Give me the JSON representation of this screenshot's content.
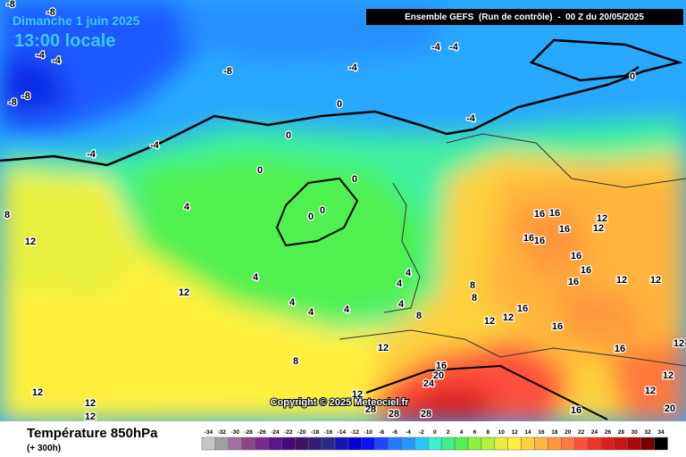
{
  "header": {
    "date": "Dimanche 1 juin 2025",
    "time": "13:00 locale",
    "model": "Ensemble GEFS  (Run de contrôle)  -  00 Z du 20/05/2025"
  },
  "copyright": "Copyright © 2025 Meteociel.fr",
  "footer": {
    "title": "Température 850hPa",
    "subtitle": "(+ 300h)"
  },
  "scale": {
    "labels": [
      -34,
      -32,
      -30,
      -28,
      -26,
      -24,
      -22,
      -20,
      -18,
      -16,
      -14,
      -12,
      -10,
      -8,
      -6,
      -4,
      -2,
      0,
      2,
      4,
      6,
      8,
      10,
      12,
      14,
      16,
      18,
      20,
      22,
      24,
      26,
      28,
      30,
      32,
      34
    ],
    "colors": [
      "#c8c8c8",
      "#a0a0a0",
      "#a070a0",
      "#8c468c",
      "#78288c",
      "#5a148c",
      "#460a78",
      "#3c1464",
      "#321e78",
      "#28288c",
      "#1414b4",
      "#0000d2",
      "#0a14f0",
      "#1e46ff",
      "#2878ff",
      "#2896ff",
      "#28c8ff",
      "#3cf0d2",
      "#3cf08c",
      "#50f050",
      "#8cf03c",
      "#b4f03c",
      "#e6f03c",
      "#fff03c",
      "#ffd23c",
      "#ffb43c",
      "#ff963c",
      "#ff783c",
      "#ff503c",
      "#f03228",
      "#dc1e1e",
      "#c81414",
      "#aa0a0a",
      "#780000",
      "#000000"
    ]
  },
  "map_labels": [
    "-8",
    "-8",
    "-4",
    "-4",
    "-8",
    "-8",
    "-8",
    "-4",
    "-4",
    "-4",
    "-4",
    "-4",
    "-4",
    "0",
    "0",
    "0",
    "0",
    "0",
    "0",
    "0",
    "4",
    "4",
    "4",
    "4",
    "4",
    "4",
    "4",
    "4",
    "8",
    "12",
    "12",
    "12",
    "12",
    "12",
    "8",
    "8",
    "16",
    "16",
    "16",
    "12",
    "12",
    "16",
    "16",
    "16",
    "16",
    "12",
    "12",
    "16",
    "16",
    "16",
    "16",
    "12",
    "16",
    "20",
    "24",
    "28",
    "28",
    "28",
    "12",
    "12",
    "12",
    "12",
    "12",
    "16",
    "20",
    "12",
    "8",
    "8"
  ]
}
